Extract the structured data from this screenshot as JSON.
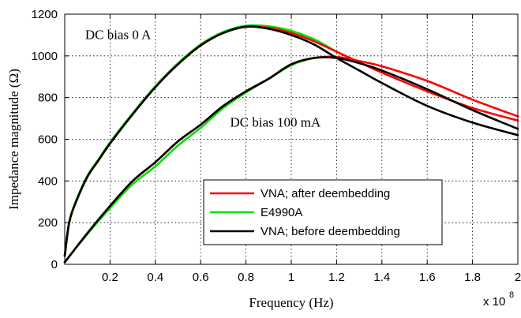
{
  "chart_data": {
    "type": "line",
    "xlabel": "Frequency (Hz)",
    "ylabel": "Impedance magnitude (Ω)",
    "x_multiplier_label": "x 10",
    "x_multiplier_exp": "8",
    "xlim": [
      0,
      2.0
    ],
    "ylim": [
      0,
      1200
    ],
    "x_ticks": [
      0.2,
      0.4,
      0.6,
      0.8,
      1.0,
      1.2,
      1.4,
      1.6,
      1.8,
      2.0
    ],
    "x_tick_labels": [
      "0.2",
      "0.4",
      "0.6",
      "0.8",
      "1",
      "1.2",
      "1.4",
      "1.6",
      "1.8",
      "2"
    ],
    "y_ticks": [
      0,
      200,
      400,
      600,
      800,
      1000,
      1200
    ],
    "y_tick_labels": [
      "0",
      "200",
      "400",
      "600",
      "800",
      "1000",
      "1200"
    ],
    "grid": true,
    "legend_position": "lower-center",
    "annotations": [
      {
        "text": "DC bias 0 A",
        "x": 0.09,
        "y": 1080
      },
      {
        "text": "DC bias 100 mA",
        "x": 0.73,
        "y": 660
      }
    ],
    "series": [
      {
        "name": "VNA; after deembedding",
        "color": "#ff0000",
        "curves": [
          {
            "x": [
              0.0,
              0.02,
              0.05,
              0.1,
              0.15,
              0.2,
              0.3,
              0.4,
              0.5,
              0.6,
              0.7,
              0.8,
              0.9,
              1.0,
              1.1,
              1.2,
              1.3,
              1.4,
              1.6,
              1.8,
              2.0
            ],
            "y": [
              40,
              200,
              300,
              420,
              500,
              580,
              720,
              850,
              960,
              1050,
              1110,
              1140,
              1135,
              1110,
              1070,
              1020,
              970,
              920,
              830,
              750,
              690
            ]
          },
          {
            "x": [
              0.0,
              0.1,
              0.2,
              0.3,
              0.4,
              0.5,
              0.6,
              0.7,
              0.8,
              0.9,
              1.0,
              1.1,
              1.2,
              1.3,
              1.4,
              1.6,
              1.8,
              2.0
            ],
            "y": [
              10,
              150,
              280,
              400,
              490,
              590,
              670,
              760,
              830,
              890,
              960,
              990,
              995,
              975,
              950,
              880,
              790,
              710
            ]
          }
        ]
      },
      {
        "name": "E4990A",
        "color": "#00e000",
        "curves": [
          {
            "x": [
              0.0,
              0.02,
              0.05,
              0.1,
              0.15,
              0.2,
              0.3,
              0.4,
              0.5,
              0.6,
              0.7,
              0.8,
              0.9,
              1.0,
              1.1,
              1.2
            ],
            "y": [
              45,
              205,
              305,
              425,
              505,
              585,
              725,
              855,
              965,
              1055,
              1115,
              1145,
              1142,
              1120,
              1080,
              1020
            ]
          },
          {
            "x": [
              0.0,
              0.1,
              0.2,
              0.3,
              0.4,
              0.5,
              0.6,
              0.7,
              0.8,
              0.9,
              1.0,
              1.1,
              1.2
            ],
            "y": [
              12,
              145,
              270,
              385,
              470,
              570,
              655,
              750,
              825,
              890,
              955,
              990,
              995
            ]
          }
        ]
      },
      {
        "name": "VNA; before deembedding",
        "color": "#000000",
        "curves": [
          {
            "x": [
              0.0,
              0.02,
              0.05,
              0.1,
              0.15,
              0.2,
              0.3,
              0.4,
              0.5,
              0.6,
              0.7,
              0.8,
              0.9,
              1.0,
              1.1,
              1.2,
              1.3,
              1.4,
              1.6,
              1.8,
              2.0
            ],
            "y": [
              40,
              200,
              300,
              420,
              500,
              580,
              720,
              850,
              960,
              1050,
              1110,
              1140,
              1130,
              1100,
              1055,
              990,
              930,
              870,
              760,
              680,
              620
            ]
          },
          {
            "x": [
              0.0,
              0.1,
              0.2,
              0.3,
              0.4,
              0.5,
              0.6,
              0.7,
              0.8,
              0.9,
              1.0,
              1.1,
              1.2,
              1.3,
              1.4,
              1.6,
              1.8,
              2.0
            ],
            "y": [
              10,
              150,
              280,
              400,
              490,
              590,
              670,
              760,
              830,
              890,
              960,
              990,
              990,
              965,
              930,
              840,
              740,
              650
            ]
          }
        ]
      }
    ]
  }
}
